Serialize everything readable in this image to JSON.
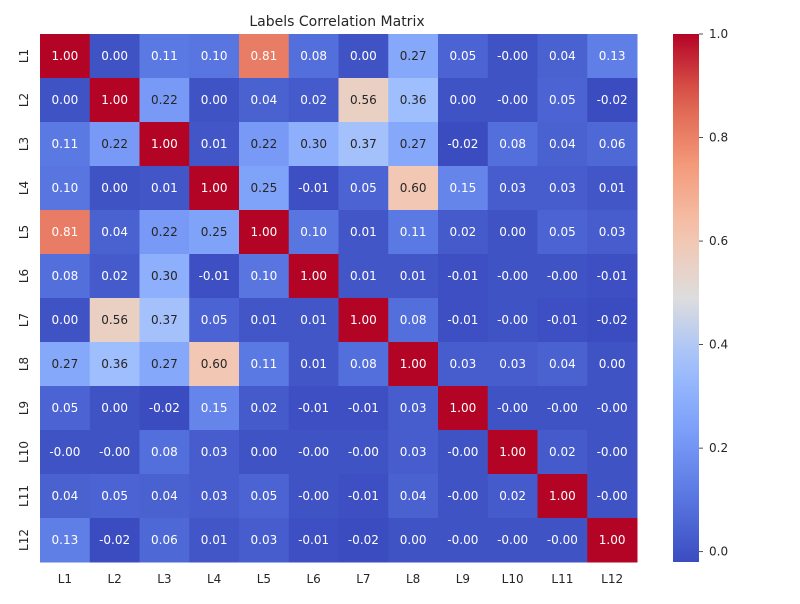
{
  "chart_data": {
    "type": "heatmap",
    "title": "Labels Correlation Matrix",
    "xlabel": "",
    "ylabel": "",
    "x_categories": [
      "L1",
      "L2",
      "L3",
      "L4",
      "L5",
      "L6",
      "L7",
      "L8",
      "L9",
      "L10",
      "L11",
      "L12"
    ],
    "y_categories": [
      "L1",
      "L2",
      "L3",
      "L4",
      "L5",
      "L6",
      "L7",
      "L8",
      "L9",
      "L10",
      "L11",
      "L12"
    ],
    "values": [
      [
        "1.00",
        "0.00",
        "0.11",
        "0.10",
        "0.81",
        "0.08",
        "0.00",
        "0.27",
        "0.05",
        "-0.00",
        "0.04",
        "0.13"
      ],
      [
        "0.00",
        "1.00",
        "0.22",
        "0.00",
        "0.04",
        "0.02",
        "0.56",
        "0.36",
        "0.00",
        "-0.00",
        "0.05",
        "-0.02"
      ],
      [
        "0.11",
        "0.22",
        "1.00",
        "0.01",
        "0.22",
        "0.30",
        "0.37",
        "0.27",
        "-0.02",
        "0.08",
        "0.04",
        "0.06"
      ],
      [
        "0.10",
        "0.00",
        "0.01",
        "1.00",
        "0.25",
        "-0.01",
        "0.05",
        "0.60",
        "0.15",
        "0.03",
        "0.03",
        "0.01"
      ],
      [
        "0.81",
        "0.04",
        "0.22",
        "0.25",
        "1.00",
        "0.10",
        "0.01",
        "0.11",
        "0.02",
        "0.00",
        "0.05",
        "0.03"
      ],
      [
        "0.08",
        "0.02",
        "0.30",
        "-0.01",
        "0.10",
        "1.00",
        "0.01",
        "0.01",
        "-0.01",
        "-0.00",
        "-0.00",
        "-0.01"
      ],
      [
        "0.00",
        "0.56",
        "0.37",
        "0.05",
        "0.01",
        "0.01",
        "1.00",
        "0.08",
        "-0.01",
        "-0.00",
        "-0.01",
        "-0.02"
      ],
      [
        "0.27",
        "0.36",
        "0.27",
        "0.60",
        "0.11",
        "0.01",
        "0.08",
        "1.00",
        "0.03",
        "0.03",
        "0.04",
        "0.00"
      ],
      [
        "0.05",
        "0.00",
        "-0.02",
        "0.15",
        "0.02",
        "-0.01",
        "-0.01",
        "0.03",
        "1.00",
        "-0.00",
        "-0.00",
        "-0.00"
      ],
      [
        "-0.00",
        "-0.00",
        "0.08",
        "0.03",
        "0.00",
        "-0.00",
        "-0.00",
        "0.03",
        "-0.00",
        "1.00",
        "0.02",
        "-0.00"
      ],
      [
        "0.04",
        "0.05",
        "0.04",
        "0.03",
        "0.05",
        "-0.00",
        "-0.01",
        "0.04",
        "-0.00",
        "0.02",
        "1.00",
        "-0.00"
      ],
      [
        "0.13",
        "-0.02",
        "0.06",
        "0.01",
        "0.03",
        "-0.01",
        "-0.02",
        "0.00",
        "-0.00",
        "-0.00",
        "-0.00",
        "1.00"
      ]
    ],
    "colormap": "coolwarm",
    "colorbar": {
      "vmin": -0.02,
      "vmax": 1.0,
      "ticks": [
        "0.0",
        "0.2",
        "0.4",
        "0.6",
        "0.8",
        "1.0"
      ]
    },
    "annotations_shown": true,
    "grid": false
  }
}
